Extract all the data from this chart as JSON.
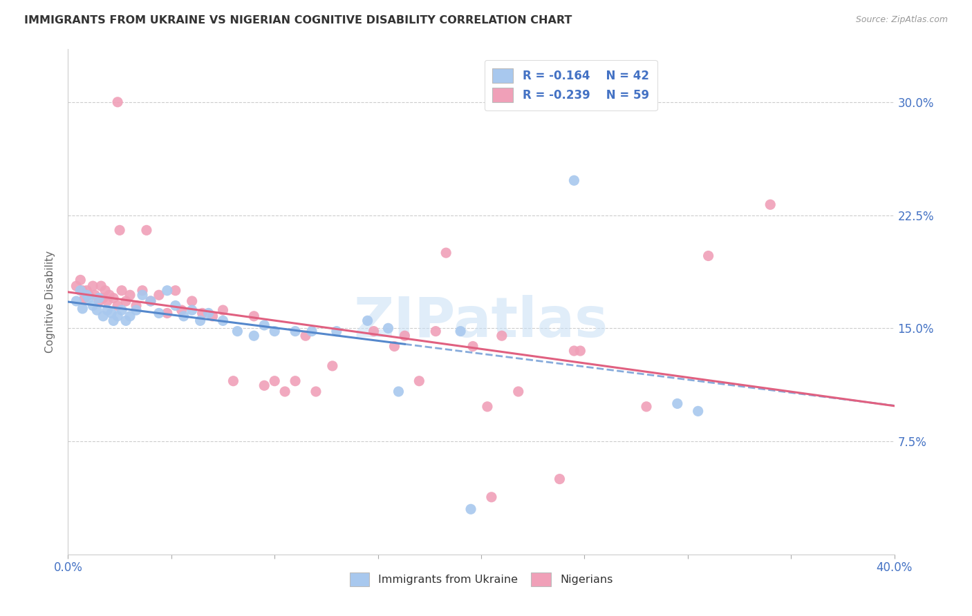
{
  "title": "IMMIGRANTS FROM UKRAINE VS NIGERIAN COGNITIVE DISABILITY CORRELATION CHART",
  "source": "Source: ZipAtlas.com",
  "ylabel": "Cognitive Disability",
  "ytick_vals": [
    0.075,
    0.15,
    0.225,
    0.3
  ],
  "ytick_labels": [
    "7.5%",
    "15.0%",
    "22.5%",
    "30.0%"
  ],
  "xlim": [
    0.0,
    0.4
  ],
  "ylim": [
    0.0,
    0.335
  ],
  "ukraine_color": "#A8C8EE",
  "ukraine_line_color": "#5588CC",
  "nigerian_color": "#F0A0B8",
  "nigerian_line_color": "#E06080",
  "ukraine_R": -0.164,
  "ukraine_N": 42,
  "nigerian_R": -0.239,
  "nigerian_N": 59,
  "legend_label_ukraine": "Immigrants from Ukraine",
  "legend_label_nigerian": "Nigerians",
  "watermark": "ZIPatlas",
  "ukraine_points": [
    [
      0.004,
      0.168
    ],
    [
      0.006,
      0.175
    ],
    [
      0.007,
      0.163
    ],
    [
      0.009,
      0.172
    ],
    [
      0.01,
      0.17
    ],
    [
      0.012,
      0.165
    ],
    [
      0.014,
      0.162
    ],
    [
      0.015,
      0.17
    ],
    [
      0.017,
      0.158
    ],
    [
      0.019,
      0.162
    ],
    [
      0.021,
      0.16
    ],
    [
      0.022,
      0.155
    ],
    [
      0.024,
      0.158
    ],
    [
      0.026,
      0.162
    ],
    [
      0.028,
      0.155
    ],
    [
      0.03,
      0.158
    ],
    [
      0.033,
      0.162
    ],
    [
      0.036,
      0.172
    ],
    [
      0.04,
      0.168
    ],
    [
      0.044,
      0.16
    ],
    [
      0.048,
      0.175
    ],
    [
      0.052,
      0.165
    ],
    [
      0.056,
      0.158
    ],
    [
      0.06,
      0.162
    ],
    [
      0.064,
      0.155
    ],
    [
      0.068,
      0.16
    ],
    [
      0.075,
      0.155
    ],
    [
      0.082,
      0.148
    ],
    [
      0.09,
      0.145
    ],
    [
      0.095,
      0.152
    ],
    [
      0.1,
      0.148
    ],
    [
      0.11,
      0.148
    ],
    [
      0.118,
      0.148
    ],
    [
      0.13,
      0.148
    ],
    [
      0.145,
      0.155
    ],
    [
      0.155,
      0.15
    ],
    [
      0.16,
      0.108
    ],
    [
      0.19,
      0.148
    ],
    [
      0.245,
      0.248
    ],
    [
      0.295,
      0.1
    ],
    [
      0.305,
      0.095
    ],
    [
      0.195,
      0.03
    ]
  ],
  "nigerian_points": [
    [
      0.004,
      0.178
    ],
    [
      0.006,
      0.182
    ],
    [
      0.007,
      0.175
    ],
    [
      0.008,
      0.17
    ],
    [
      0.009,
      0.175
    ],
    [
      0.01,
      0.172
    ],
    [
      0.012,
      0.178
    ],
    [
      0.013,
      0.172
    ],
    [
      0.015,
      0.168
    ],
    [
      0.016,
      0.178
    ],
    [
      0.017,
      0.17
    ],
    [
      0.018,
      0.175
    ],
    [
      0.019,
      0.168
    ],
    [
      0.02,
      0.172
    ],
    [
      0.022,
      0.17
    ],
    [
      0.024,
      0.165
    ],
    [
      0.026,
      0.175
    ],
    [
      0.028,
      0.168
    ],
    [
      0.03,
      0.172
    ],
    [
      0.033,
      0.165
    ],
    [
      0.036,
      0.175
    ],
    [
      0.04,
      0.168
    ],
    [
      0.044,
      0.172
    ],
    [
      0.048,
      0.16
    ],
    [
      0.052,
      0.175
    ],
    [
      0.055,
      0.162
    ],
    [
      0.06,
      0.168
    ],
    [
      0.065,
      0.16
    ],
    [
      0.07,
      0.158
    ],
    [
      0.075,
      0.162
    ],
    [
      0.08,
      0.115
    ],
    [
      0.09,
      0.158
    ],
    [
      0.095,
      0.112
    ],
    [
      0.1,
      0.115
    ],
    [
      0.105,
      0.108
    ],
    [
      0.11,
      0.115
    ],
    [
      0.115,
      0.145
    ],
    [
      0.12,
      0.108
    ],
    [
      0.128,
      0.125
    ],
    [
      0.024,
      0.3
    ],
    [
      0.025,
      0.215
    ],
    [
      0.038,
      0.215
    ],
    [
      0.148,
      0.148
    ],
    [
      0.158,
      0.138
    ],
    [
      0.163,
      0.145
    ],
    [
      0.17,
      0.115
    ],
    [
      0.178,
      0.148
    ],
    [
      0.183,
      0.2
    ],
    [
      0.196,
      0.138
    ],
    [
      0.203,
      0.098
    ],
    [
      0.21,
      0.145
    ],
    [
      0.218,
      0.108
    ],
    [
      0.238,
      0.05
    ],
    [
      0.245,
      0.135
    ],
    [
      0.248,
      0.135
    ],
    [
      0.28,
      0.098
    ],
    [
      0.31,
      0.198
    ],
    [
      0.34,
      0.232
    ],
    [
      0.205,
      0.038
    ]
  ]
}
